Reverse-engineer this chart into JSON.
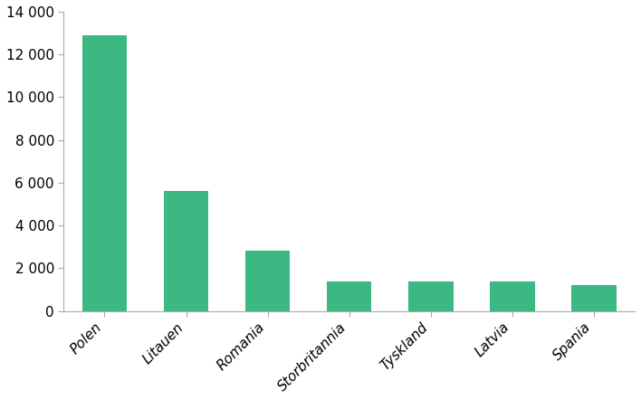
{
  "categories": [
    "Polen",
    "Litauen",
    "Romania",
    "Storbritannia",
    "Tyskland",
    "Latvia",
    "Spania"
  ],
  "values": [
    12900,
    5600,
    2800,
    1400,
    1400,
    1400,
    1200
  ],
  "bar_color": "#3cb882",
  "background_color": "#ffffff",
  "ylim": [
    0,
    14000
  ],
  "yticks": [
    0,
    2000,
    4000,
    6000,
    8000,
    10000,
    12000,
    14000
  ],
  "bar_width": 0.55,
  "tick_label_fontsize": 11,
  "ytick_fontsize": 11
}
